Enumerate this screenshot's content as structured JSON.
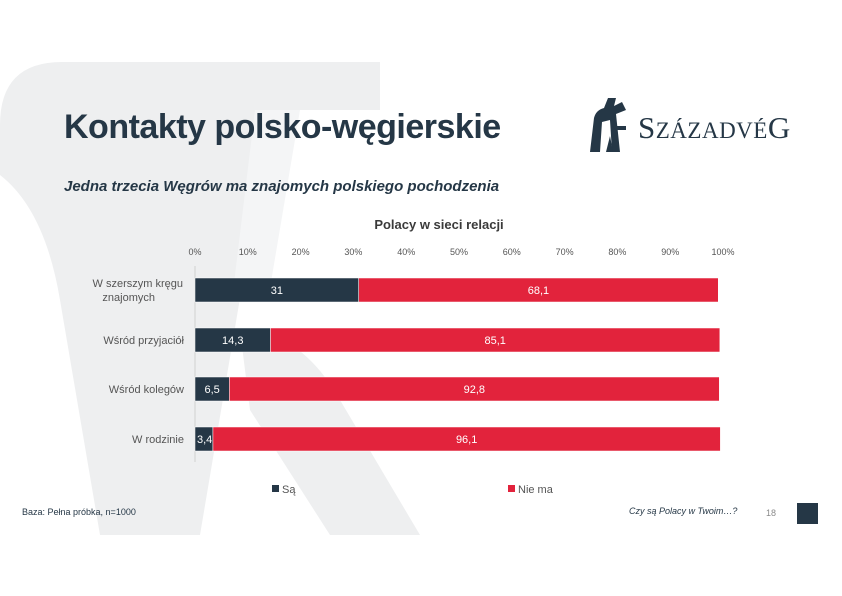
{
  "slide": {
    "title": "Kontakty polsko-węgierskie",
    "subtitle": "Jedna trzecia Węgrów ma znajomych polskiego pochodzenia",
    "footer_base": "Baza: Pełna próbka, n=1000",
    "footer_ref": "Czy są Polacy w Twoim…?",
    "page_number": "18"
  },
  "logo": {
    "text_initial": "S",
    "text_mid": "ZÁZADVÉ",
    "text_final": "G",
    "icon": "szazadveg-logo-mark"
  },
  "colors": {
    "navy": "#253746",
    "red": "#E2233C",
    "watermark": "#EEEFF0"
  },
  "chart_data": {
    "type": "bar",
    "orientation": "horizontal",
    "stacked": true,
    "title": "Polacy w sieci relacji",
    "categories": [
      "W szerszym kręgu znajomych",
      "Wśród przyjaciół",
      "Wśród kolegów",
      "W rodzinie"
    ],
    "series": [
      {
        "name": "Są",
        "values": [
          31,
          14.3,
          6.5,
          3.4
        ],
        "labels": [
          "31",
          "14,3",
          "6,5",
          "3,4"
        ],
        "color": "#253746"
      },
      {
        "name": "Nie ma",
        "values": [
          68.1,
          85.1,
          92.8,
          96.1
        ],
        "labels": [
          "68,1",
          "85,1",
          "92,8",
          "96,1"
        ],
        "color": "#E2233C"
      }
    ],
    "x_ticks": [
      "0%",
      "10%",
      "20%",
      "30%",
      "40%",
      "50%",
      "60%",
      "70%",
      "80%",
      "90%",
      "100%"
    ],
    "xlim": [
      0,
      100
    ],
    "grid": false,
    "legend_position": "bottom"
  }
}
